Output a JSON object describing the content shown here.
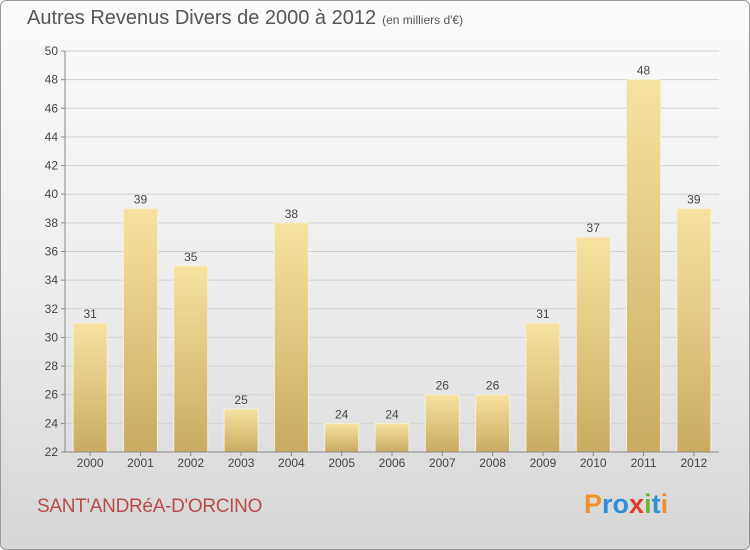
{
  "header": {
    "title": "Autres Revenus Divers de 2000 à 2012",
    "unit": "(en milliers d'€)"
  },
  "footer": {
    "place": "SANT'ANDRéA-D'ORCINO",
    "logo": "Proxiti"
  },
  "colors": {
    "bar_light": "#f7e2a0",
    "bar_dark": "#c9ab62",
    "place_text": "#b84a4a",
    "logo_letters": [
      "#f0902a",
      "#2e8fd6",
      "#2e8fd6",
      "#e23b2a",
      "#6cb33f",
      "#2e8fd6",
      "#f0902a"
    ]
  },
  "chart_data": {
    "type": "bar",
    "title": "Autres Revenus Divers de 2000 à 2012",
    "subtitle": "(en milliers d'€)",
    "xlabel": "",
    "ylabel": "",
    "categories": [
      "2000",
      "2001",
      "2002",
      "2003",
      "2004",
      "2005",
      "2006",
      "2007",
      "2008",
      "2009",
      "2010",
      "2011",
      "2012"
    ],
    "values": [
      31,
      39,
      35,
      25,
      38,
      24,
      24,
      26,
      26,
      31,
      37,
      48,
      39
    ],
    "ylim": [
      22,
      50
    ],
    "yticks": [
      22,
      24,
      26,
      28,
      30,
      32,
      34,
      36,
      38,
      40,
      42,
      44,
      46,
      48,
      50
    ],
    "grid": true,
    "legend": "none"
  }
}
